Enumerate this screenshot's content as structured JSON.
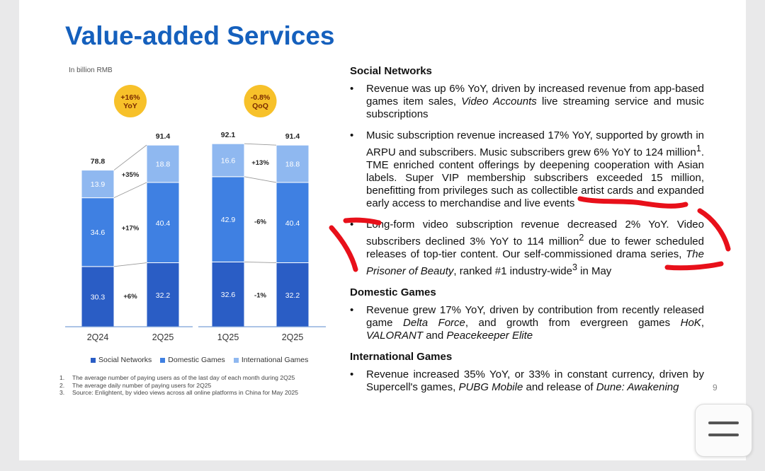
{
  "title": "Value-added Services",
  "colors": {
    "title": "#1560bd",
    "social": "#2a5dc5",
    "domestic": "#3f80e2",
    "international": "#8fb8f0",
    "badge": "#f7c12a",
    "annotation": "#e8101a"
  },
  "chart_data": {
    "type": "bar",
    "unit_label": "In billion RMB",
    "groups": [
      {
        "comparison": "YoY",
        "badge": "+16% YoY",
        "badge_lines": [
          "+16%",
          "YoY"
        ],
        "categories": [
          "2Q24",
          "2Q25"
        ],
        "totals": [
          "78.8",
          "91.4"
        ],
        "series": [
          {
            "name": "Social Networks",
            "values": [
              30.3,
              32.2
            ],
            "change": "+6%"
          },
          {
            "name": "Domestic Games",
            "values": [
              34.6,
              40.4
            ],
            "change": "+17%"
          },
          {
            "name": "International Games",
            "values": [
              13.9,
              18.8
            ],
            "change": "+35%"
          }
        ]
      },
      {
        "comparison": "QoQ",
        "badge": "-0.8% QoQ",
        "badge_lines": [
          "-0.8%",
          "QoQ"
        ],
        "categories": [
          "1Q25",
          "2Q25"
        ],
        "totals": [
          "92.1",
          "91.4"
        ],
        "series": [
          {
            "name": "Social Networks",
            "values": [
              32.6,
              32.2
            ],
            "change": "-1%"
          },
          {
            "name": "Domestic Games",
            "values": [
              42.9,
              40.4
            ],
            "change": "-6%"
          },
          {
            "name": "International Games",
            "values": [
              16.6,
              18.8
            ],
            "change": "+13%"
          }
        ]
      }
    ],
    "legend": [
      "Social Networks",
      "Domestic Games",
      "International Games"
    ],
    "legend_position": "bottom"
  },
  "notes": [
    {
      "num": "1.",
      "text": "The average number of paying users as of the last day of each month during 2Q25"
    },
    {
      "num": "2.",
      "text": "The average daily number of paying users for 2Q25"
    },
    {
      "num": "3.",
      "text": "Source: Enlightent, by video views across all online platforms in China for May 2025"
    }
  ],
  "sections": [
    {
      "heading": "Social Networks",
      "bullets": [
        "Revenue was up 6% YoY, driven by increased revenue from app-based games item sales, <i>Video Accounts</i> live streaming service and music subscriptions",
        "Music subscription revenue increased 17% YoY, supported by growth in ARPU and subscribers. Music subscribers grew 6% YoY to 124 million<sup>1</sup>. TME enriched content offerings by deepening cooperation with Asian labels. Super VIP membership subscribers exceeded 15 million, benefitting from privileges such as collectible artist cards and expanded early access to merchandise and live events",
        "Long-form video subscription revenue decreased 2% YoY. Video subscribers declined 3% YoY to 114 million<sup>2</sup> due to fewer scheduled releases of top-tier content. Our self-commissioned drama series, <i>The Prisoner of Beauty</i>, ranked #1 industry-wide<sup>3</sup> in May"
      ]
    },
    {
      "heading": "Domestic Games",
      "bullets": [
        "Revenue grew 17% YoY, driven by contribution from recently released game <i>Delta Force</i>, and growth from evergreen games <i>HoK</i>, <i>VALORANT</i> and <i>Peacekeeper Elite</i>"
      ]
    },
    {
      "heading": "International Games",
      "bullets": [
        "Revenue increased 35% YoY, or 33% in constant currency, driven by Supercell's games, <i>PUBG Mobile</i> and release of <i>Dune: Awakening</i>"
      ]
    }
  ],
  "page_number": "9",
  "menu_button": {
    "icon": "hamburger-menu-icon"
  }
}
